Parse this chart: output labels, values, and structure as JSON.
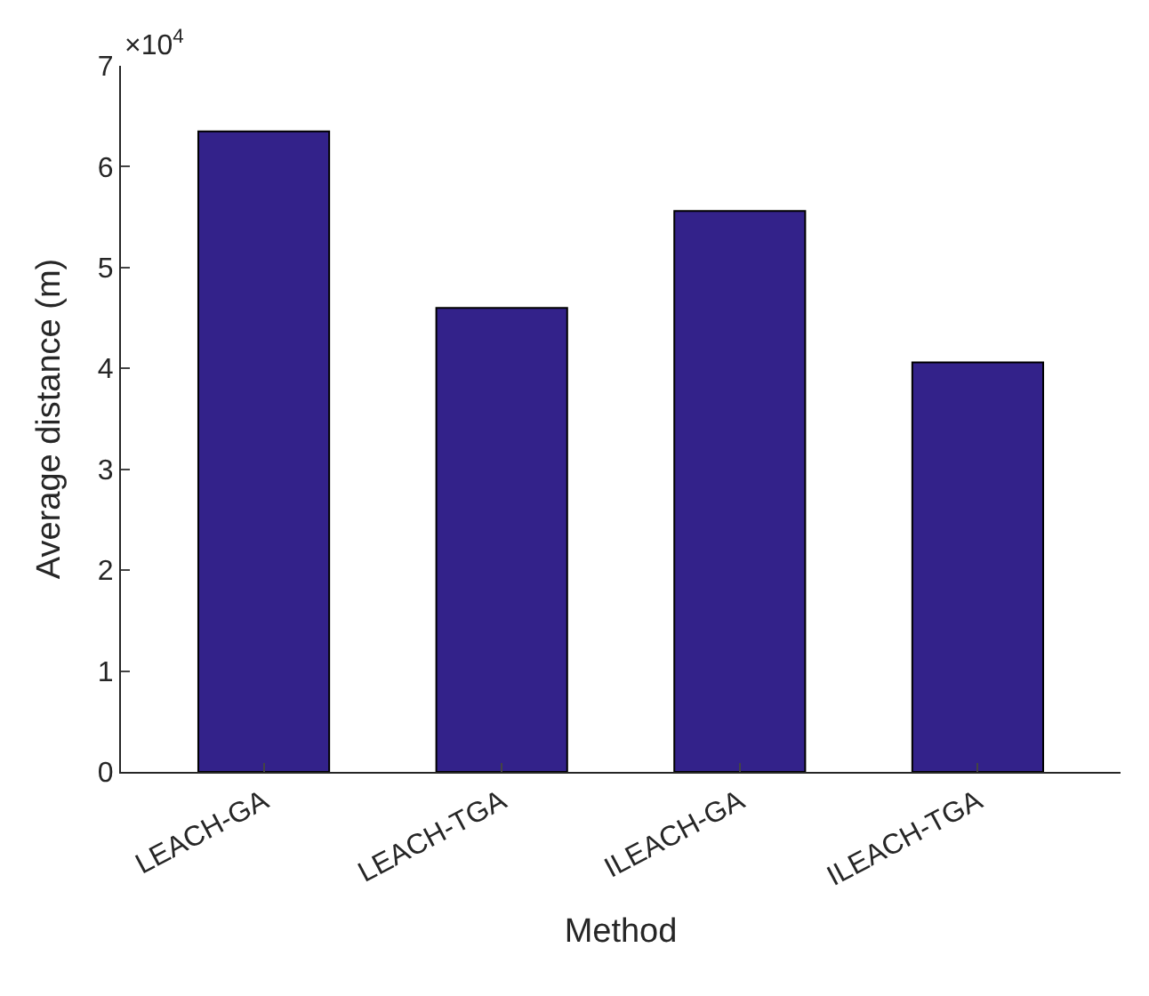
{
  "chart_data": {
    "type": "bar",
    "xlabel": "Method",
    "ylabel": "Average distance (m)",
    "categories": [
      "LEACH-GA",
      "LEACH-TGA",
      "ILEACH-GA",
      "ILEACH-TGA"
    ],
    "values": [
      6.35,
      4.6,
      5.56,
      4.06
    ],
    "color": "#33228a",
    "ylim": [
      0,
      7
    ],
    "yticks": [
      0,
      1,
      2,
      3,
      4,
      5,
      6,
      7
    ],
    "annotations": [
      "×10$^{4}$"
    ]
  }
}
